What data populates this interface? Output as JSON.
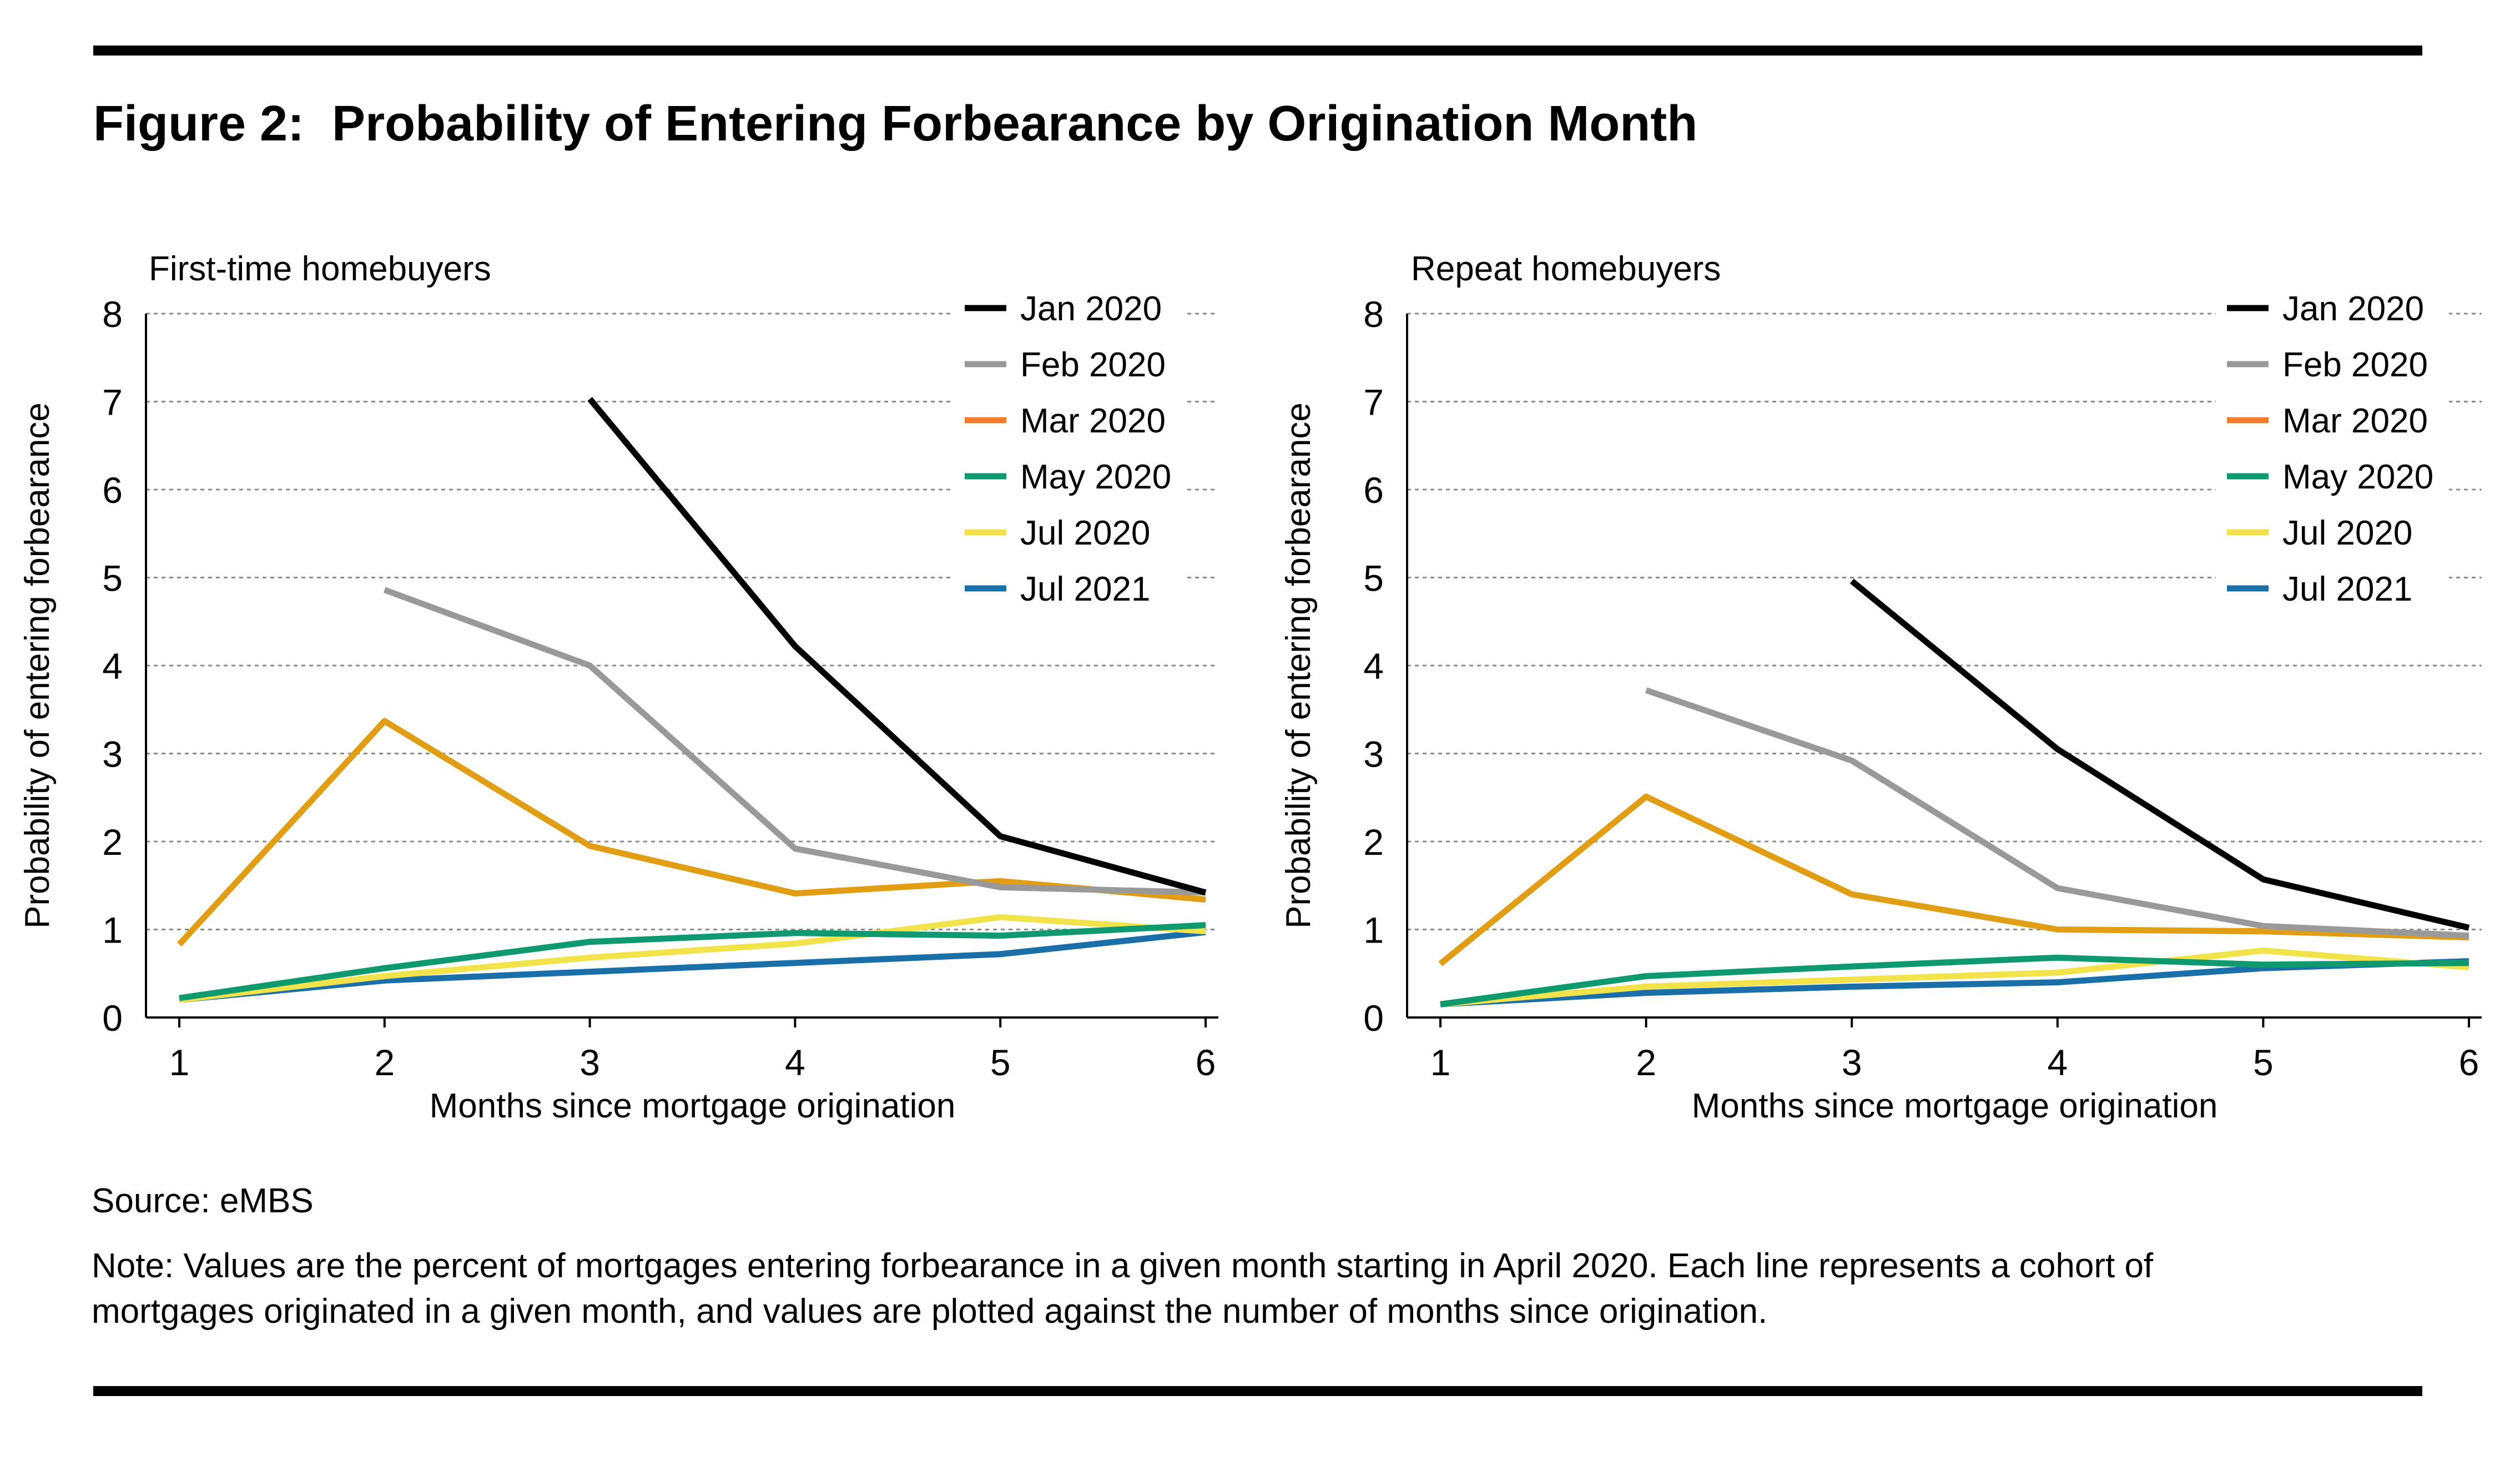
{
  "figure": {
    "title": "Figure 2:  Probability of Entering Forbearance by Origination Month",
    "source": "Source: eMBS",
    "note_line1": "Note: Values are the percent of mortgages entering forbearance in a given month starting in April 2020. Each line represents a cohort of",
    "note_line2": "mortgages originated in a given month, and values are plotted against the number of months since origination."
  },
  "chart_data": [
    {
      "type": "line",
      "title": "First-time homebuyers",
      "xlabel": "Months since mortgage origination",
      "ylabel": "Probability of entering forbearance",
      "x": [
        1,
        2,
        3,
        4,
        5,
        6
      ],
      "xlim": [
        1,
        6
      ],
      "ylim": [
        0,
        8
      ],
      "yticks": [
        0,
        1,
        2,
        3,
        4,
        5,
        6,
        7,
        8
      ],
      "grid": "horizontal dotted",
      "legend_position": "top-right",
      "series": [
        {
          "name": "Jan 2020",
          "color": "#000000",
          "values": [
            null,
            null,
            7.03,
            4.22,
            2.06,
            1.42
          ]
        },
        {
          "name": "Feb 2020",
          "color": "#999999",
          "values": [
            null,
            4.86,
            4.0,
            1.92,
            1.48,
            1.42
          ]
        },
        {
          "name": "Mar 2020",
          "color": "#e19d14",
          "legend_color": "#f07c2c",
          "values": [
            0.83,
            3.37,
            1.95,
            1.41,
            1.55,
            1.34
          ]
        },
        {
          "name": "May 2020",
          "color": "#0e9a6e",
          "values": [
            0.22,
            0.56,
            0.86,
            0.96,
            0.93,
            1.05
          ]
        },
        {
          "name": "Jul 2020",
          "color": "#f2e34a",
          "values": [
            0.2,
            0.47,
            0.68,
            0.84,
            1.14,
            0.98
          ]
        },
        {
          "name": "Jul 2021",
          "color": "#1a6fa8",
          "values": [
            0.2,
            0.42,
            0.52,
            0.62,
            0.72,
            0.97
          ]
        }
      ]
    },
    {
      "type": "line",
      "title": "Repeat homebuyers",
      "xlabel": "Months since mortgage origination",
      "ylabel": "Probability of entering forbearance",
      "x": [
        1,
        2,
        3,
        4,
        5,
        6
      ],
      "xlim": [
        1,
        6
      ],
      "ylim": [
        0,
        8
      ],
      "yticks": [
        0,
        1,
        2,
        3,
        4,
        5,
        6,
        7,
        8
      ],
      "grid": "horizontal dotted",
      "legend_position": "top-right",
      "series": [
        {
          "name": "Jan 2020",
          "color": "#000000",
          "values": [
            null,
            null,
            4.96,
            3.05,
            1.57,
            1.02
          ]
        },
        {
          "name": "Feb 2020",
          "color": "#999999",
          "values": [
            null,
            3.72,
            2.92,
            1.47,
            1.04,
            0.93
          ]
        },
        {
          "name": "Mar 2020",
          "color": "#e19d14",
          "legend_color": "#f07c2c",
          "values": [
            0.61,
            2.51,
            1.4,
            1.0,
            0.98,
            0.91
          ]
        },
        {
          "name": "May 2020",
          "color": "#0e9a6e",
          "values": [
            0.15,
            0.47,
            0.58,
            0.68,
            0.6,
            0.62
          ]
        },
        {
          "name": "Jul 2020",
          "color": "#f2e34a",
          "values": [
            0.15,
            0.35,
            0.43,
            0.51,
            0.76,
            0.57
          ]
        },
        {
          "name": "Jul 2021",
          "color": "#1a6fa8",
          "values": [
            0.15,
            0.28,
            0.35,
            0.4,
            0.56,
            0.64
          ]
        }
      ]
    }
  ]
}
